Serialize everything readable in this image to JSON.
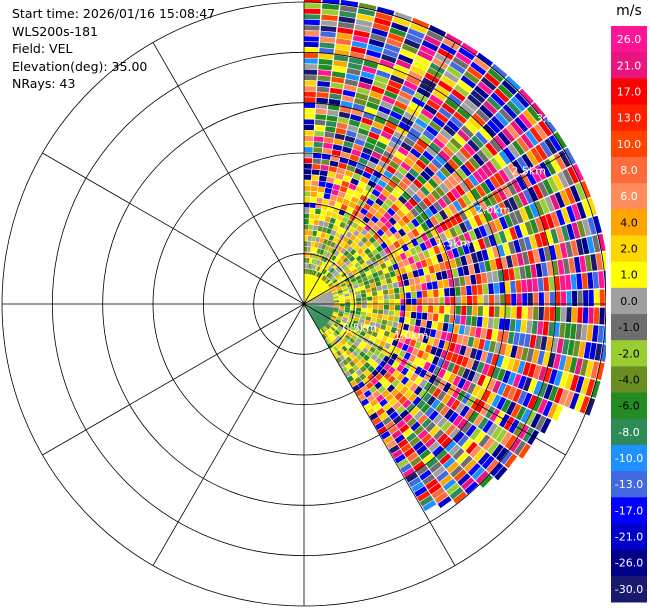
{
  "info": {
    "start_time": "Start time: 2026/01/16 15:08:47",
    "instrument": "WLS200s-181",
    "field": "Field: VEL",
    "elevation": "Elevation(deg): 35.00",
    "nrays": "NRays: 43"
  },
  "chart_data": {
    "type": "heatmap",
    "projection": "polar-ppi",
    "field": "VEL",
    "units": "m/s",
    "elevation_deg": 35.0,
    "n_rays": 43,
    "azimuth_range_deg": [
      0,
      150
    ],
    "range_rings_km": [
      0.5,
      1.0,
      1.5,
      2.0,
      2.5,
      3.0
    ],
    "ring_labels": [
      "0.5km",
      "1.0km",
      "1.5km",
      "2.0km",
      "2.5km",
      "3.0km"
    ],
    "max_range_km": 3.0,
    "spoke_angles_deg": [
      0,
      30,
      60,
      90,
      120,
      150,
      180,
      210,
      240,
      270,
      300,
      330
    ],
    "colorbar": {
      "unit": "m/s",
      "ticks": [
        "26.0",
        "21.0",
        "17.0",
        "13.0",
        "10.0",
        "8.0",
        "6.0",
        "4.0",
        "2.0",
        "1.0",
        "0.0",
        "-1.0",
        "-2.0",
        "-4.0",
        "-6.0",
        "-8.0",
        "-10.0",
        "-13.0",
        "-17.0",
        "-21.0",
        "-26.0",
        "-30.0"
      ],
      "colors": [
        "#ff1493",
        "#e8157f",
        "#ff0000",
        "#ff2000",
        "#ff4500",
        "#ff6a3a",
        "#ff8c5a",
        "#ffa500",
        "#ffd700",
        "#ffff00",
        "#a0a0a0",
        "#6e6e6e",
        "#9acd32",
        "#6b8e23",
        "#228b22",
        "#2e8b57",
        "#1e90ff",
        "#4169e1",
        "#0000ff",
        "#0000cd",
        "#00008b",
        "#191970"
      ]
    }
  }
}
